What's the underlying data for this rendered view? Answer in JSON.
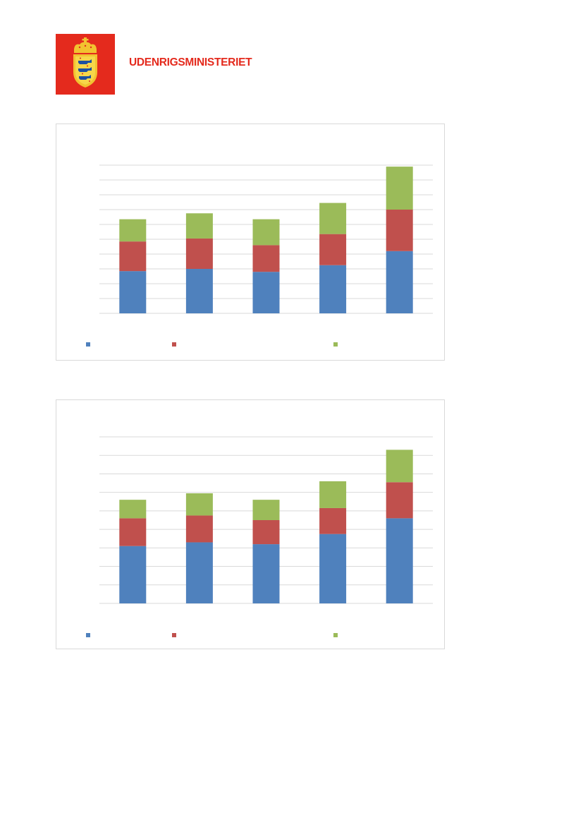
{
  "header": {
    "ministry_name": "UDENRIGSMINISTERIET",
    "logo": "danish-coat-of-arms"
  },
  "colors": {
    "brand_red": "#e42a1d",
    "series_blue": "#4f81bd",
    "series_red": "#c0504d",
    "series_green": "#9bbb59",
    "gridline": "#d9d9d9"
  },
  "chart_data": [
    {
      "type": "bar",
      "stacked": true,
      "categories": [
        "",
        "",
        "",
        "",
        ""
      ],
      "series": [
        {
          "values": [
            2.85,
            3.0,
            2.8,
            3.25,
            4.2
          ]
        },
        {
          "values": [
            2.0,
            2.05,
            1.8,
            2.1,
            2.8
          ]
        },
        {
          "values": [
            1.5,
            1.7,
            1.75,
            2.1,
            2.9
          ]
        }
      ],
      "ylim": [
        0,
        10
      ],
      "grid": true,
      "legend": "bottom",
      "title": "",
      "xlabel": "",
      "ylabel": ""
    },
    {
      "type": "bar",
      "stacked": true,
      "categories": [
        "",
        "",
        "",
        "",
        ""
      ],
      "series": [
        {
          "values": [
            3.1,
            3.3,
            3.2,
            3.75,
            4.6
          ]
        },
        {
          "values": [
            1.5,
            1.45,
            1.3,
            1.4,
            1.95
          ]
        },
        {
          "values": [
            1.0,
            1.2,
            1.1,
            1.45,
            1.75
          ]
        }
      ],
      "ylim": [
        0,
        9
      ],
      "grid": true,
      "legend": "bottom",
      "title": "",
      "xlabel": "",
      "ylabel": ""
    }
  ]
}
